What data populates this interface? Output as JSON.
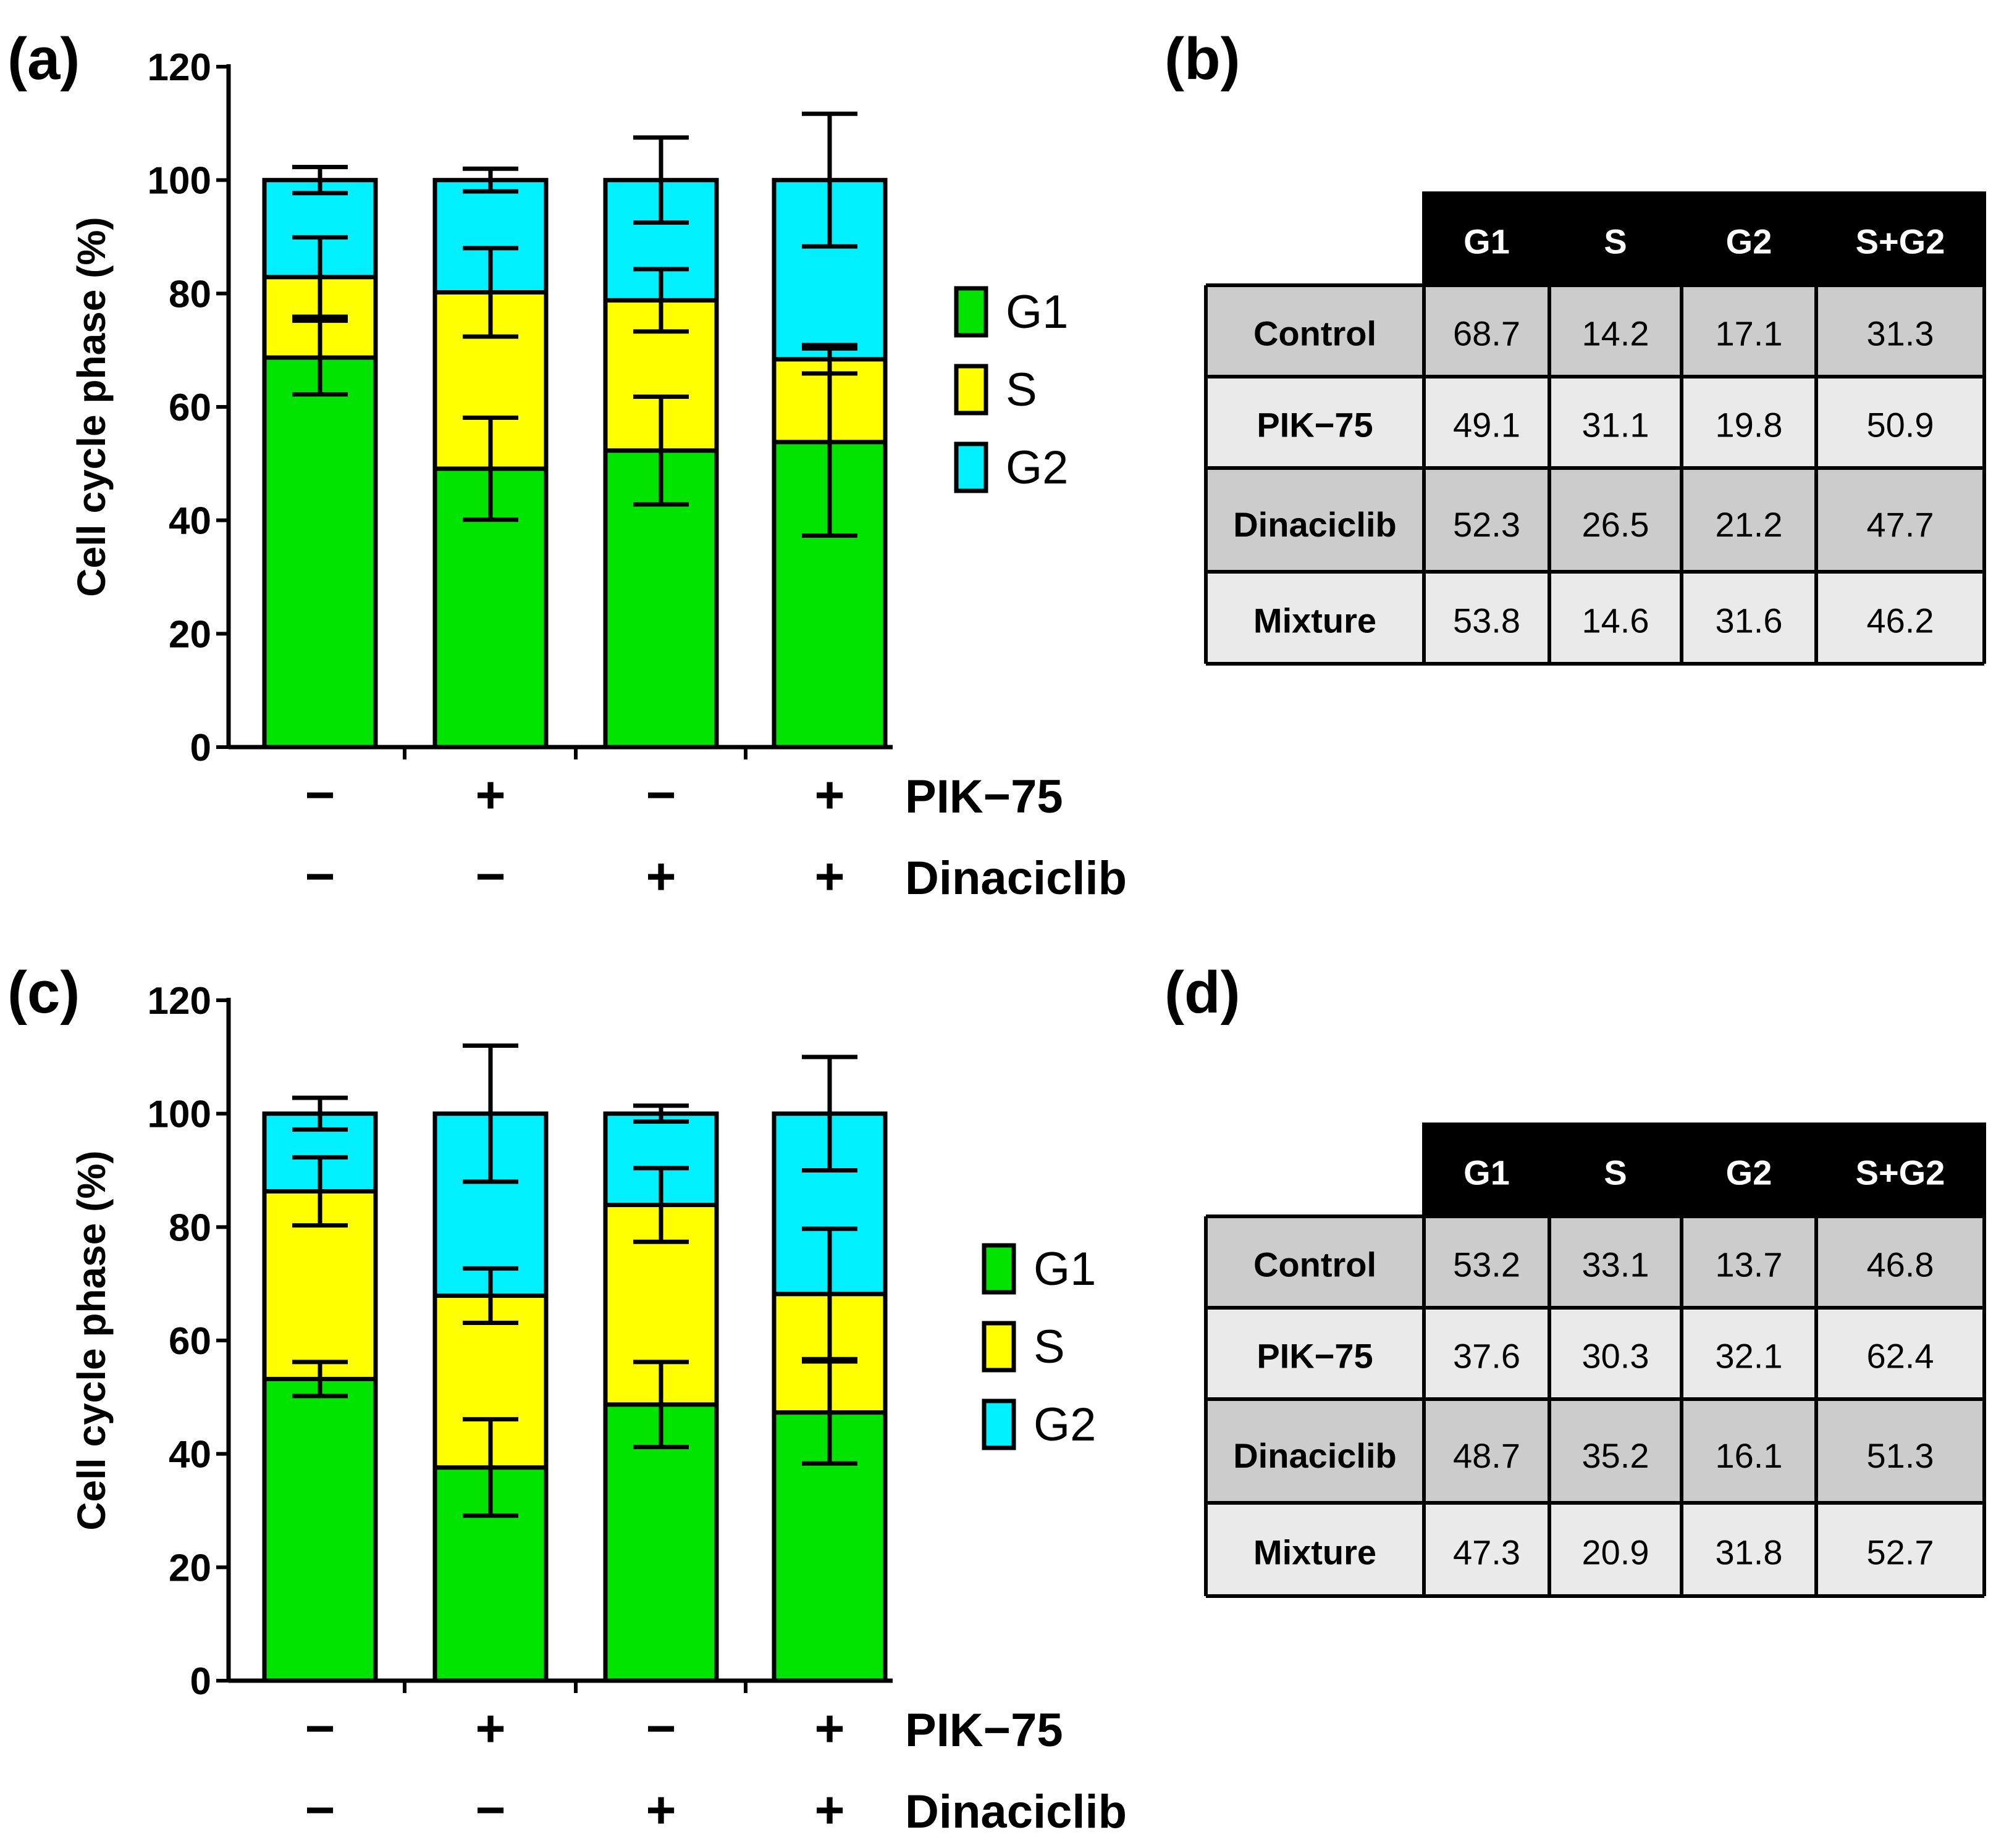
{
  "colors": {
    "G1": "#00e400",
    "S": "#ffff00",
    "G2": "#00f0ff",
    "axis": "#000000",
    "table_header_bg": "#000000",
    "row_dark": "#cccccc",
    "row_light": "#eaeaea"
  },
  "chart_data": [
    {
      "type": "bar",
      "stacked": true,
      "panel_label": "(a)",
      "ylabel": "Cell cycle phase (%)",
      "ylim": [
        0,
        120
      ],
      "yticks": [
        "0",
        "20",
        "40",
        "60",
        "80",
        "100",
        "120"
      ],
      "legend": [
        "G1",
        "S",
        "G2"
      ],
      "treatments": [
        {
          "name": "PIK−75",
          "signs": [
            "−",
            "+",
            "−",
            "+"
          ]
        },
        {
          "name": "Dinaciclib",
          "signs": [
            "−",
            "−",
            "+",
            "+"
          ]
        }
      ],
      "series": [
        {
          "name": "G1",
          "values": [
            68.7,
            49.1,
            52.3,
            53.8
          ],
          "errors": [
            6.5,
            9.0,
            9.5,
            16.5
          ]
        },
        {
          "name": "S",
          "values": [
            14.2,
            31.1,
            26.5,
            14.6
          ],
          "errors": [
            7.0,
            7.8,
            5.5,
            2.5
          ]
        },
        {
          "name": "G2",
          "values": [
            17.1,
            19.8,
            21.2,
            31.6
          ],
          "errors": [
            2.3,
            2.0,
            7.5,
            11.7
          ]
        }
      ]
    },
    {
      "type": "bar",
      "stacked": true,
      "panel_label": "(c)",
      "ylabel": "Cell cycle phase (%)",
      "ylim": [
        0,
        120
      ],
      "yticks": [
        "0",
        "20",
        "40",
        "60",
        "80",
        "100",
        "120"
      ],
      "legend": [
        "G1",
        "S",
        "G2"
      ],
      "treatments": [
        {
          "name": "PIK−75",
          "signs": [
            "−",
            "+",
            "−",
            "+"
          ]
        },
        {
          "name": "Dinaciclib",
          "signs": [
            "−",
            "−",
            "+",
            "+"
          ]
        }
      ],
      "series": [
        {
          "name": "G1",
          "values": [
            53.2,
            37.6,
            48.7,
            47.3
          ],
          "errors": [
            3.0,
            8.5,
            7.5,
            9.0
          ]
        },
        {
          "name": "S",
          "values": [
            33.1,
            30.3,
            35.2,
            20.9
          ],
          "errors": [
            6.0,
            4.8,
            6.5,
            11.5
          ]
        },
        {
          "name": "G2",
          "values": [
            13.7,
            32.1,
            16.1,
            31.8
          ],
          "errors": [
            2.8,
            12.0,
            1.4,
            10.0
          ]
        }
      ]
    },
    {
      "type": "table",
      "panel_label": "(b)",
      "columns": [
        "",
        "G1",
        "S",
        "G2",
        "S+G2"
      ],
      "rows": [
        {
          "label": "Control",
          "cells": [
            "68.7",
            "14.2",
            "17.1",
            "31.3"
          ]
        },
        {
          "label": "PIK−75",
          "cells": [
            "49.1",
            "31.1",
            "19.8",
            "50.9"
          ]
        },
        {
          "label": "Dinaciclib",
          "cells": [
            "52.3",
            "26.5",
            "21.2",
            "47.7"
          ]
        },
        {
          "label": "Mixture",
          "cells": [
            "53.8",
            "14.6",
            "31.6",
            "46.2"
          ]
        }
      ]
    },
    {
      "type": "table",
      "panel_label": "(d)",
      "columns": [
        "",
        "G1",
        "S",
        "G2",
        "S+G2"
      ],
      "rows": [
        {
          "label": "Control",
          "cells": [
            "53.2",
            "33.1",
            "13.7",
            "46.8"
          ]
        },
        {
          "label": "PIK−75",
          "cells": [
            "37.6",
            "30.3",
            "32.1",
            "62.4"
          ]
        },
        {
          "label": "Dinaciclib",
          "cells": [
            "48.7",
            "35.2",
            "16.1",
            "51.3"
          ]
        },
        {
          "label": "Mixture",
          "cells": [
            "47.3",
            "20.9",
            "31.8",
            "52.7"
          ]
        }
      ]
    }
  ]
}
